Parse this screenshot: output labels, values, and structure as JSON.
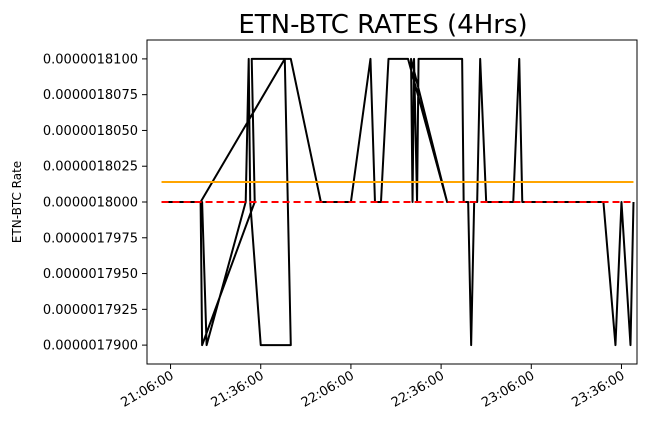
{
  "chart_data": {
    "type": "line",
    "title": "ETN-BTC RATES (4Hrs)",
    "xlabel": "",
    "ylabel": "ETN-BTC Rate",
    "x_type": "time",
    "xlim": [
      "20:58:10",
      "23:41:10"
    ],
    "ylim": [
      1.78868e-06,
      1.81132e-06
    ],
    "x_ticks": [
      "21:06:00",
      "21:36:00",
      "22:06:00",
      "22:36:00",
      "23:06:00",
      "23:36:00"
    ],
    "y_ticks": [
      {
        "value": 1.79e-06,
        "label": "0.0000017900"
      },
      {
        "value": 1.7925e-06,
        "label": "0.0000017925"
      },
      {
        "value": 1.795e-06,
        "label": "0.0000017950"
      },
      {
        "value": 1.7975e-06,
        "label": "0.0000017975"
      },
      {
        "value": 1.8e-06,
        "label": "0.0000018000"
      },
      {
        "value": 1.8025e-06,
        "label": "0.0000018025"
      },
      {
        "value": 1.805e-06,
        "label": "0.0000018050"
      },
      {
        "value": 1.8075e-06,
        "label": "0.0000018075"
      },
      {
        "value": 1.81e-06,
        "label": "0.0000018100"
      }
    ],
    "grid": false,
    "series": [
      {
        "color": "#000000",
        "style": "solid",
        "x": [
          "21:03:00",
          "21:16:30",
          "21:18:00",
          "21:31:00",
          "21:32:00",
          "21:32:30",
          "21:36:00",
          "21:46:00",
          "21:44:00",
          "21:16:00",
          "21:16:30",
          "21:34:00",
          "21:33:00",
          "21:45:30",
          "21:46:00",
          "21:56:00",
          "22:06:00",
          "22:12:30",
          "22:14:00",
          "22:16:00",
          "22:18:30",
          "22:25:00",
          "22:38:00",
          "22:26:00",
          "22:26:30",
          "22:27:00",
          "22:28:00",
          "22:28:30",
          "22:43:00",
          "22:43:30",
          "22:45:00",
          "22:46:00",
          "22:47:00",
          "22:48:00",
          "22:49:00",
          "22:51:00",
          "22:55:00",
          "23:00:00",
          "23:02:00",
          "23:03:00",
          "23:04:00",
          "23:05:00",
          "23:30:00",
          "23:34:00",
          "23:36:00",
          "23:39:00",
          "23:40:00"
        ],
        "y": [
          1.8e-06,
          1.8e-06,
          1.79e-06,
          1.8e-06,
          1.81e-06,
          1.8e-06,
          1.79e-06,
          1.79e-06,
          1.81e-06,
          1.8e-06,
          1.79e-06,
          1.8e-06,
          1.81e-06,
          1.81e-06,
          1.81e-06,
          1.8e-06,
          1.8e-06,
          1.81e-06,
          1.8e-06,
          1.8e-06,
          1.81e-06,
          1.81e-06,
          1.8e-06,
          1.81e-06,
          1.8e-06,
          1.81e-06,
          1.8e-06,
          1.81e-06,
          1.81e-06,
          1.8e-06,
          1.8e-06,
          1.79e-06,
          1.8e-06,
          1.8e-06,
          1.81e-06,
          1.8e-06,
          1.8e-06,
          1.8e-06,
          1.81e-06,
          1.8e-06,
          1.8e-06,
          1.8e-06,
          1.8e-06,
          1.79e-06,
          1.8e-06,
          1.79e-06,
          1.8e-06
        ]
      },
      {
        "color": "#ff0000",
        "style": "dashed",
        "x": [
          "21:03:00",
          "23:40:00"
        ],
        "y": [
          1.8e-06,
          1.8e-06
        ]
      },
      {
        "color": "#ffa500",
        "style": "solid",
        "x": [
          "21:03:00",
          "23:40:00"
        ],
        "y": [
          1.8014e-06,
          1.8014e-06
        ]
      }
    ]
  }
}
